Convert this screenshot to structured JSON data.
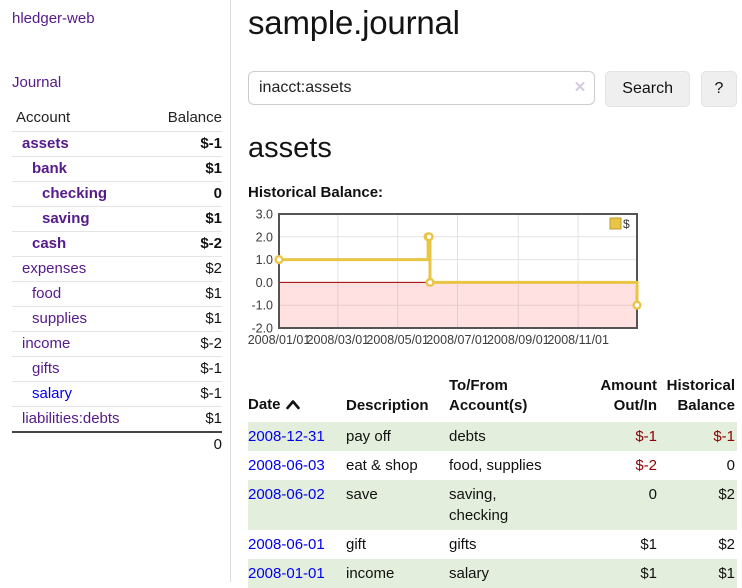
{
  "colors": {
    "link_visited_purple": "#551a8b",
    "link_blue": "#0000ee",
    "negative_strong": "#8b0000",
    "negative_soft": "#bb7070",
    "row_green": "#e3efdc",
    "chart_line_gold": "#edc240",
    "chart_negative_region": "#f9dada",
    "chart_zero_line": "#a00000",
    "button_gray": "#efefef"
  },
  "sidebar": {
    "app_title": "hledger-web",
    "journal_label": "Journal",
    "accounts_table": {
      "headers": {
        "account": "Account",
        "balance": "Balance"
      },
      "rows": [
        {
          "name": "assets",
          "balance": "$-1",
          "depth": 1,
          "bold": true,
          "negative": "strong"
        },
        {
          "name": "bank",
          "balance": "$1",
          "depth": 2,
          "bold": true
        },
        {
          "name": "checking",
          "balance": "0",
          "depth": 3,
          "bold": true
        },
        {
          "name": "saving",
          "balance": "$1",
          "depth": 3,
          "bold": true
        },
        {
          "name": "cash",
          "balance": "$-2",
          "depth": 2,
          "bold": true,
          "negative": "strong"
        },
        {
          "name": "expenses",
          "balance": "$2",
          "depth": 1
        },
        {
          "name": "food",
          "balance": "$1",
          "depth": 2
        },
        {
          "name": "supplies",
          "balance": "$1",
          "depth": 2
        },
        {
          "name": "income",
          "balance": "$-2",
          "depth": 1,
          "negative": "soft"
        },
        {
          "name": "gifts",
          "balance": "$-1",
          "depth": 2,
          "negative": "soft"
        },
        {
          "name": "salary",
          "balance": "$-1",
          "depth": 2,
          "negative": "soft",
          "link_color": "blue"
        },
        {
          "name": "liabilities:debts",
          "balance": "$1",
          "depth": 1
        }
      ],
      "total": "0"
    }
  },
  "header": {
    "title": "sample.journal"
  },
  "search": {
    "value": "inacct:assets",
    "clear_icon": "✕",
    "button_label": "Search",
    "help_label": "?"
  },
  "account_page": {
    "title": "assets",
    "chart_label": "Historical Balance:"
  },
  "chart_data": {
    "type": "line",
    "step": true,
    "title": "Historical Balance",
    "series": [
      {
        "name": "$",
        "x": [
          "2008-01-01",
          "2008-06-01",
          "2008-06-02",
          "2008-06-03",
          "2008-12-31"
        ],
        "y": [
          1,
          2,
          2,
          0,
          -1
        ]
      }
    ],
    "x_range": [
      "2008-01-01",
      "2008-12-31"
    ],
    "ylim": [
      -2,
      3
    ],
    "y_ticks": [
      3,
      2,
      1,
      0,
      -1,
      -2
    ],
    "y_tick_labels": [
      "3.0",
      "2.0",
      "1.0",
      "0.0",
      "-1.0",
      "-2.0"
    ],
    "x_ticks": [
      "2008-01-01",
      "2008-03-01",
      "2008-05-01",
      "2008-07-01",
      "2008-09-01",
      "2008-11-01"
    ],
    "x_tick_labels": [
      "2008/01/01",
      "2008/03/01",
      "2008/05/01",
      "2008/07/01",
      "2008/09/01",
      "2008/11/01"
    ],
    "legend": "$",
    "legend_position": "top-right",
    "grid": true,
    "negative_region_shaded": true
  },
  "register_table": {
    "headers": {
      "date": "Date",
      "description": "Description",
      "accounts": "To/From\nAccount(s)",
      "amount": "Amount\nOut/In",
      "balance": "Historical\nBalance"
    },
    "sort": {
      "column": "date",
      "direction": "ascending"
    },
    "rows": [
      {
        "date": "2008-12-31",
        "description": "pay off",
        "accounts": "debts",
        "amount": "$-1",
        "balance": "$-1",
        "green": true,
        "amount_negative": true,
        "balance_negative": true
      },
      {
        "date": "2008-06-03",
        "description": "eat & shop",
        "accounts": "food, supplies",
        "amount": "$-2",
        "balance": "0",
        "green": false,
        "amount_negative": true
      },
      {
        "date": "2008-06-02",
        "description": "save",
        "accounts": "saving,\nchecking",
        "amount": "0",
        "balance": "$2",
        "green": true
      },
      {
        "date": "2008-06-01",
        "description": "gift",
        "accounts": "gifts",
        "amount": "$1",
        "balance": "$2",
        "green": false
      },
      {
        "date": "2008-01-01",
        "description": "income",
        "accounts": "salary",
        "amount": "$1",
        "balance": "$1",
        "green": true
      }
    ]
  }
}
